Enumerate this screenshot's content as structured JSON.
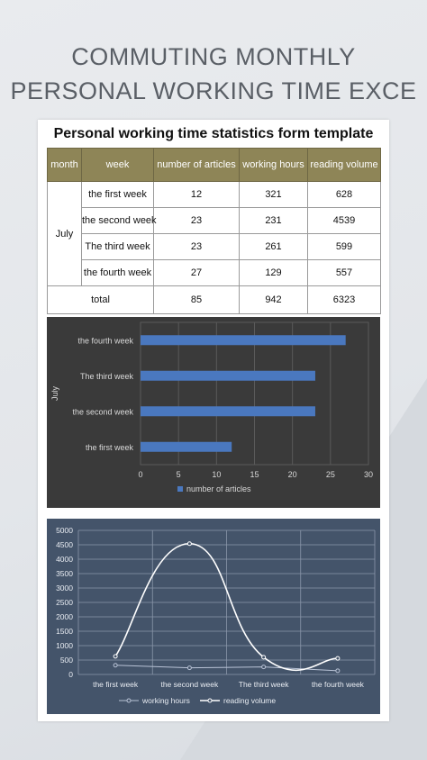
{
  "page": {
    "heading_line1": "COMMUTING MONTHLY",
    "heading_line2": "PERSONAL WORKING TIME EXCE"
  },
  "sheet": {
    "title": "Personal working time statistics form template",
    "columns": [
      "month",
      "week",
      "number of articles",
      "working hours",
      "reading volume"
    ],
    "month_label": "July",
    "rows": [
      {
        "week": "the first week",
        "articles": "12",
        "hours": "321",
        "reading": "628"
      },
      {
        "week": "the second week",
        "articles": "23",
        "hours": "231",
        "reading": "4539"
      },
      {
        "week": "The third week",
        "articles": "23",
        "hours": "261",
        "reading": "599"
      },
      {
        "week": "the fourth week",
        "articles": "27",
        "hours": "129",
        "reading": "557"
      }
    ],
    "total": {
      "label": "total",
      "articles": "85",
      "hours": "942",
      "reading": "6323"
    }
  },
  "chart_data": [
    {
      "type": "bar",
      "orientation": "horizontal",
      "categories": [
        "the first week",
        "the second week",
        "The third week",
        "the fourth week"
      ],
      "series": [
        {
          "name": "number of articles",
          "values": [
            12,
            23,
            23,
            27
          ],
          "color": "#4a78bf"
        }
      ],
      "ylabel": "July",
      "xlim": [
        0,
        30
      ],
      "xticks": [
        0,
        5,
        10,
        15,
        20,
        25,
        30
      ],
      "legend": "bottom",
      "grid": true,
      "background": "#3a3a3a"
    },
    {
      "type": "line",
      "categories": [
        "the first week",
        "the second week",
        "The third week",
        "the fourth week"
      ],
      "series": [
        {
          "name": "working hours",
          "values": [
            321,
            231,
            261,
            129
          ],
          "color": "#b9c3d6"
        },
        {
          "name": "reading volume",
          "values": [
            628,
            4539,
            599,
            557
          ],
          "color": "#ffffff",
          "smooth": true
        }
      ],
      "ylim": [
        0,
        5000
      ],
      "yticks": [
        0,
        500,
        1000,
        1500,
        2000,
        2500,
        3000,
        3500,
        4000,
        4500,
        5000
      ],
      "legend": "bottom",
      "grid": true,
      "background": "#44546a"
    }
  ]
}
